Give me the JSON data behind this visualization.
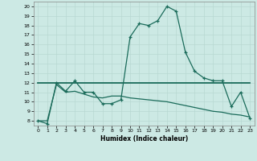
{
  "xlabel": "Humidex (Indice chaleur)",
  "bg_color": "#cce9e4",
  "line_color": "#1a6b5a",
  "grid_color": "#b8d8d2",
  "ylim": [
    7.5,
    20.5
  ],
  "xlim": [
    -0.5,
    23.5
  ],
  "yticks": [
    8,
    9,
    10,
    11,
    12,
    13,
    14,
    15,
    16,
    17,
    18,
    19,
    20
  ],
  "xticks": [
    0,
    1,
    2,
    3,
    4,
    5,
    6,
    7,
    8,
    9,
    10,
    11,
    12,
    13,
    14,
    15,
    16,
    17,
    18,
    19,
    20,
    21,
    22,
    23
  ],
  "line1_x": [
    0,
    1,
    2,
    3,
    4,
    5,
    6,
    7,
    8,
    9,
    10,
    11,
    12,
    13,
    14,
    15,
    16,
    17,
    18,
    19,
    20,
    21,
    22,
    23
  ],
  "line1_y": [
    8.0,
    7.7,
    12.0,
    11.1,
    12.2,
    11.0,
    11.0,
    9.8,
    9.8,
    10.2,
    16.8,
    18.2,
    18.0,
    18.5,
    20.0,
    19.5,
    15.2,
    13.2,
    12.5,
    12.2,
    12.2,
    9.5,
    11.0,
    8.3
  ],
  "line2_x": [
    0,
    1,
    2,
    3,
    4,
    5,
    6,
    7,
    8,
    9,
    10,
    11,
    12,
    13,
    14,
    15,
    16,
    17,
    18,
    19,
    20,
    21,
    22,
    23
  ],
  "line2_y": [
    12.0,
    12.0,
    12.0,
    12.0,
    12.0,
    12.0,
    12.0,
    12.0,
    12.0,
    12.0,
    12.0,
    12.0,
    12.0,
    12.0,
    12.0,
    12.0,
    12.0,
    12.0,
    12.0,
    12.0,
    12.0,
    12.0,
    12.0,
    12.0
  ],
  "line3_x": [
    0,
    1,
    2,
    3,
    4,
    5,
    6,
    7,
    8,
    9,
    10,
    11,
    12,
    13,
    14,
    15,
    16,
    17,
    18,
    19,
    20,
    21,
    22,
    23
  ],
  "line3_y": [
    8.0,
    8.0,
    11.8,
    11.0,
    11.1,
    10.8,
    10.5,
    10.4,
    10.6,
    10.6,
    10.4,
    10.3,
    10.2,
    10.1,
    10.0,
    9.8,
    9.6,
    9.4,
    9.2,
    9.0,
    8.9,
    8.7,
    8.6,
    8.4
  ]
}
